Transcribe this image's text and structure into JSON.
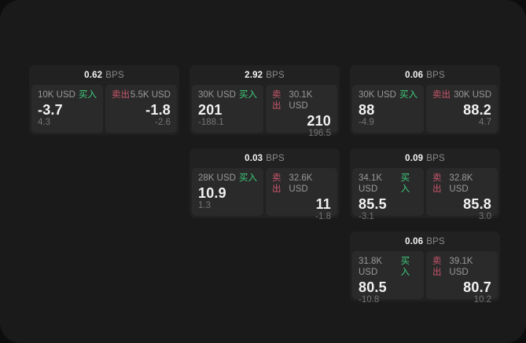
{
  "labels": {
    "bps_unit": "BPS",
    "buy": "买入",
    "sell": "卖出"
  },
  "colors": {
    "background": "#1a1a1a",
    "card_background": "#212121",
    "panel_background": "#2a2a2a",
    "buy_accent": "#3ecf7e",
    "sell_accent": "#c9566b",
    "primary_text": "#f2f2f2",
    "muted_text": "#8a8a8a"
  },
  "cards": [
    {
      "bps": "0.62",
      "buy": {
        "amount": "10K USD",
        "price": "-3.7",
        "delta": "4.3"
      },
      "sell": {
        "amount": "5.5K USD",
        "price": "-1.8",
        "delta": "-2.6"
      }
    },
    {
      "bps": "2.92",
      "buy": {
        "amount": "30K USD",
        "price": "201",
        "delta": "-188.1"
      },
      "sell": {
        "amount": "30.1K USD",
        "price": "210",
        "delta": "196.5"
      }
    },
    {
      "bps": "0.06",
      "buy": {
        "amount": "30K USD",
        "price": "88",
        "delta": "-4.9"
      },
      "sell": {
        "amount": "30K USD",
        "price": "88.2",
        "delta": "4.7"
      }
    },
    {
      "bps": "0.03",
      "buy": {
        "amount": "28K USD",
        "price": "10.9",
        "delta": "1.3"
      },
      "sell": {
        "amount": "32.6K USD",
        "price": "11",
        "delta": "-1.8"
      }
    },
    {
      "bps": "0.09",
      "buy": {
        "amount": "34.1K USD",
        "price": "85.5",
        "delta": "-3.1"
      },
      "sell": {
        "amount": "32.8K USD",
        "price": "85.8",
        "delta": "3.0"
      }
    },
    {
      "bps": "0.06",
      "buy": {
        "amount": "31.8K USD",
        "price": "80.5",
        "delta": "-10.8"
      },
      "sell": {
        "amount": "39.1K USD",
        "price": "80.7",
        "delta": "10.2"
      }
    }
  ]
}
